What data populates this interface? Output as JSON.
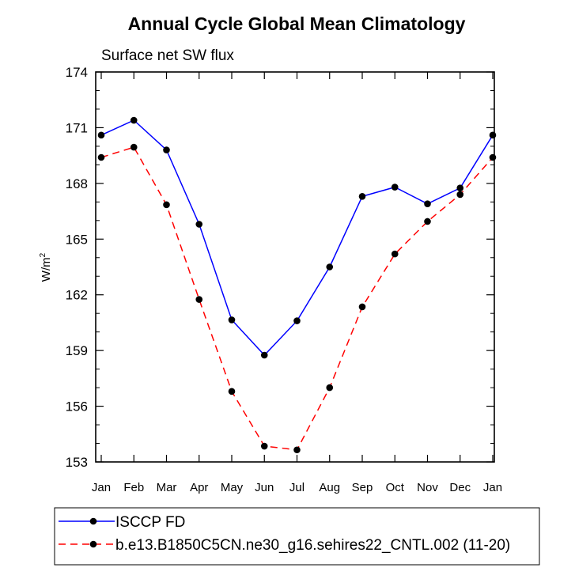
{
  "chart_data": {
    "type": "line",
    "title": "Annual Cycle Global Mean Climatology",
    "subtitle": "Surface net SW flux",
    "ylabel_base": "W/m",
    "ylabel_sup": "2",
    "xlabel": "",
    "categories": [
      "Jan",
      "Feb",
      "Mar",
      "Apr",
      "May",
      "Jun",
      "Jul",
      "Aug",
      "Sep",
      "Oct",
      "Nov",
      "Dec",
      "Jan"
    ],
    "ylim": [
      153,
      174
    ],
    "yticks": [
      "153",
      "156",
      "159",
      "162",
      "165",
      "168",
      "171",
      "174"
    ],
    "grid": false,
    "legend_position": "bottom",
    "series": [
      {
        "name": "ISCCP FD",
        "color": "#0000ff",
        "line_style": "solid",
        "values": [
          170.6,
          171.4,
          169.8,
          165.8,
          160.65,
          158.75,
          160.6,
          163.5,
          167.3,
          167.8,
          166.9,
          167.75,
          170.6
        ]
      },
      {
        "name": "b.e13.B1850C5CN.ne30_g16.sehires22_CNTL.002 (11-20)",
        "color": "#ff0000",
        "line_style": "dashed",
        "values": [
          169.4,
          169.95,
          166.85,
          161.75,
          156.8,
          153.85,
          153.65,
          157.0,
          161.35,
          164.2,
          165.95,
          167.4,
          169.4
        ]
      }
    ]
  }
}
